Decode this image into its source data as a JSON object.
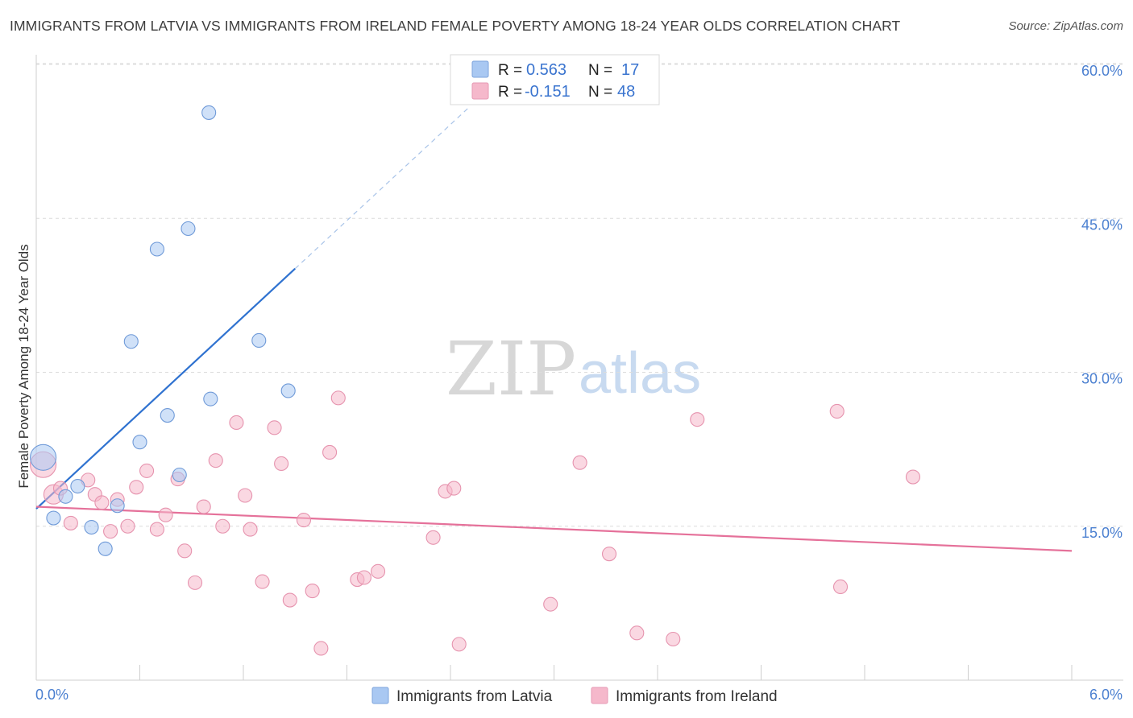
{
  "title": "IMMIGRANTS FROM LATVIA VS IMMIGRANTS FROM IRELAND FEMALE POVERTY AMONG 18-24 YEAR OLDS CORRELATION CHART",
  "source": "Source: ZipAtlas.com",
  "watermark": {
    "zip": "ZIP",
    "atlas": "atlas"
  },
  "legend_box": {
    "rows": [
      {
        "r_label": "R =",
        "r_value": "0.563",
        "n_label": "N =",
        "n_value": "17",
        "color": "#a9c8f2"
      },
      {
        "r_label": "R =",
        "r_value": "-0.151",
        "n_label": "N =",
        "n_value": "48",
        "color": "#f5b8cb"
      }
    ]
  },
  "bottom_legend": {
    "items": [
      {
        "label": "Immigrants from Latvia",
        "color": "#a9c8f2"
      },
      {
        "label": "Immigrants from Ireland",
        "color": "#f5b8cb"
      }
    ]
  },
  "chart_data": {
    "type": "scatter",
    "title": "IMMIGRANTS FROM LATVIA VS IMMIGRANTS FROM IRELAND FEMALE POVERTY AMONG 18-24 YEAR OLDS CORRELATION CHART",
    "xlabel": "",
    "ylabel": "Female Poverty Among 18-24 Year Olds",
    "xlim": [
      0,
      6
    ],
    "ylim": [
      0,
      60
    ],
    "x_tick_labels": [
      {
        "value": 0,
        "label": "0.0%"
      },
      {
        "value": 6,
        "label": "6.0%"
      }
    ],
    "y_tick_labels": [
      {
        "value": 15,
        "label": "15.0%"
      },
      {
        "value": 30,
        "label": "30.0%"
      },
      {
        "value": 45,
        "label": "45.0%"
      },
      {
        "value": 60,
        "label": "60.0%"
      }
    ],
    "grid": "horizontal dashed",
    "legend_placement": "top-center and bottom",
    "series": [
      {
        "name": "Immigrants from Latvia",
        "color": "#a9c8f2",
        "stroke": "#6f9ad8",
        "points": [
          [
            0.04,
            21.7
          ],
          [
            0.1,
            15.8
          ],
          [
            0.17,
            17.9
          ],
          [
            0.24,
            18.9
          ],
          [
            0.32,
            14.9
          ],
          [
            0.4,
            12.8
          ],
          [
            0.47,
            17.0
          ],
          [
            0.55,
            33.0
          ],
          [
            0.6,
            23.2
          ],
          [
            0.7,
            42.0
          ],
          [
            0.76,
            25.8
          ],
          [
            0.83,
            20.0
          ],
          [
            0.88,
            44.0
          ],
          [
            1.0,
            55.3
          ],
          [
            1.01,
            27.4
          ],
          [
            1.29,
            33.1
          ],
          [
            1.46,
            28.2
          ]
        ],
        "sizes": [
          3,
          1,
          1,
          1,
          1,
          1,
          1,
          1,
          1,
          1,
          1,
          1,
          1,
          1,
          1,
          1,
          1
        ],
        "trend": {
          "x0": 0.0,
          "y0": 16.7,
          "x1": 1.5,
          "y1": 40.1,
          "dashed_to_x": 2.5,
          "dashed_to_y": 55.7,
          "color": "#2f72d0"
        }
      },
      {
        "name": "Immigrants from Ireland",
        "color": "#f5b8cb",
        "stroke": "#e693ae",
        "points": [
          [
            0.04,
            21.0
          ],
          [
            0.1,
            18.1
          ],
          [
            0.14,
            18.7
          ],
          [
            0.2,
            15.3
          ],
          [
            0.3,
            19.5
          ],
          [
            0.34,
            18.1
          ],
          [
            0.38,
            17.3
          ],
          [
            0.43,
            14.5
          ],
          [
            0.47,
            17.6
          ],
          [
            0.53,
            15.0
          ],
          [
            0.58,
            18.8
          ],
          [
            0.64,
            20.4
          ],
          [
            0.7,
            14.7
          ],
          [
            0.75,
            16.1
          ],
          [
            0.82,
            19.6
          ],
          [
            0.86,
            12.6
          ],
          [
            0.92,
            9.5
          ],
          [
            0.97,
            16.9
          ],
          [
            1.04,
            21.4
          ],
          [
            1.08,
            15.0
          ],
          [
            1.16,
            25.1
          ],
          [
            1.21,
            18.0
          ],
          [
            1.24,
            14.7
          ],
          [
            1.31,
            9.6
          ],
          [
            1.38,
            24.6
          ],
          [
            1.42,
            21.1
          ],
          [
            1.47,
            7.8
          ],
          [
            1.55,
            15.6
          ],
          [
            1.6,
            8.7
          ],
          [
            1.65,
            3.1
          ],
          [
            1.7,
            22.2
          ],
          [
            1.75,
            27.5
          ],
          [
            1.86,
            9.8
          ],
          [
            1.9,
            10.0
          ],
          [
            1.98,
            10.6
          ],
          [
            2.3,
            13.9
          ],
          [
            2.37,
            18.4
          ],
          [
            2.42,
            18.7
          ],
          [
            2.45,
            3.5
          ],
          [
            2.98,
            7.4
          ],
          [
            3.15,
            21.2
          ],
          [
            3.32,
            12.3
          ],
          [
            3.48,
            4.6
          ],
          [
            3.69,
            4.0
          ],
          [
            3.83,
            25.4
          ],
          [
            4.64,
            26.2
          ],
          [
            4.66,
            9.1
          ],
          [
            5.08,
            19.8
          ]
        ],
        "sizes": [
          3,
          2,
          1,
          1,
          1,
          1,
          1,
          1,
          1,
          1,
          1,
          1,
          1,
          1,
          1,
          1,
          1,
          1,
          1,
          1,
          1,
          1,
          1,
          1,
          1,
          1,
          1,
          1,
          1,
          1,
          1,
          1,
          1,
          1,
          1,
          1,
          1,
          1,
          1,
          1,
          1,
          1,
          1,
          1,
          1,
          1,
          1,
          1
        ],
        "trend": {
          "x0": 0.0,
          "y0": 16.9,
          "x1": 6.0,
          "y1": 12.6,
          "color": "#e5719a"
        }
      }
    ]
  }
}
